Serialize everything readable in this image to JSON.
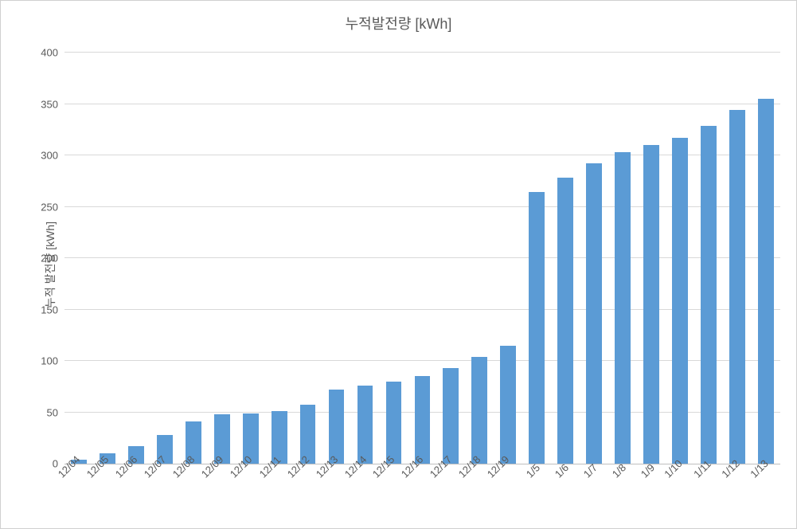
{
  "chart": {
    "type": "bar",
    "title": "누적발전량 [kWh]",
    "title_fontsize": 18,
    "title_color": "#595959",
    "y_axis_label": "누적 발전량 [kWh]",
    "y_axis_label_fontsize": 14,
    "categories": [
      "12/04",
      "12/05",
      "12/06",
      "12/07",
      "12/08",
      "12/09",
      "12/10",
      "12/11",
      "12/12",
      "12/13",
      "12/14",
      "12/15",
      "12/16",
      "12/17",
      "12/18",
      "12/19",
      "1/5",
      "1/6",
      "1/7",
      "1/8",
      "1/9",
      "1/10",
      "1/11",
      "1/12",
      "1/13"
    ],
    "values": [
      4,
      10,
      17,
      28,
      41,
      48,
      49,
      51,
      57,
      72,
      76,
      80,
      85,
      93,
      104,
      115,
      264,
      278,
      292,
      303,
      310,
      317,
      329,
      344,
      355
    ],
    "bar_color": "#5b9bd5",
    "bar_width_pct": 55,
    "ylim": [
      0,
      400
    ],
    "ytick_step": 50,
    "y_ticks": [
      0,
      50,
      100,
      150,
      200,
      250,
      300,
      350,
      400
    ],
    "xtick_fontsize": 13,
    "ytick_fontsize": 13,
    "xtick_rotation_deg": -45,
    "background_color": "#ffffff",
    "grid_color": "#d9d9d9",
    "axis_line_color": "#bfbfbf",
    "border_color": "#d0d0d0",
    "tick_label_color": "#595959"
  }
}
